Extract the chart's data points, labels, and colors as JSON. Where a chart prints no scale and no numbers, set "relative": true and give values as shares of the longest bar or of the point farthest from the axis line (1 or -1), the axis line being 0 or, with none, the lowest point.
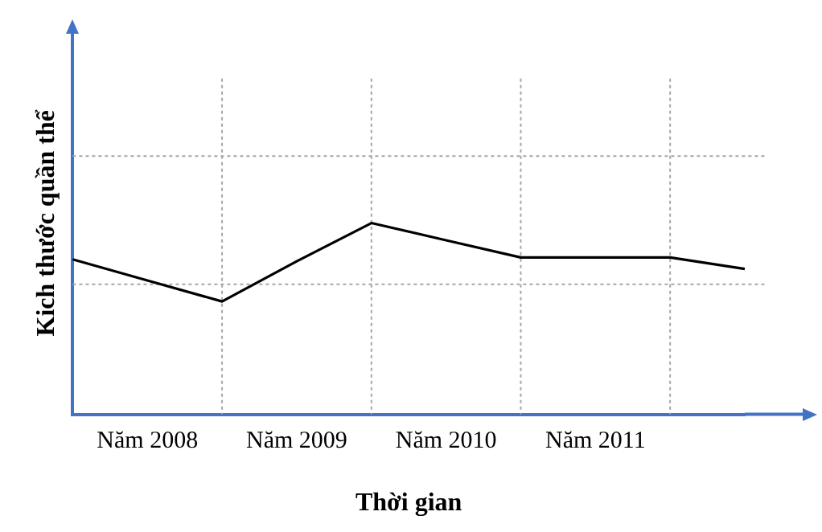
{
  "chart_data": {
    "type": "line",
    "relative": true,
    "xlabel": "Thời gian",
    "ylabel": "Kich thước quần thể",
    "categories": [
      null,
      "Năm 2008",
      null,
      "Năm 2009",
      null,
      "Năm 2010",
      null,
      "Năm 2011",
      null,
      null
    ],
    "series": [
      {
        "color": "#000000",
        "values": [
          0.81,
          0.7,
          0.59,
          0.8,
          1,
          0.91,
          0.82,
          0.82,
          0.82,
          0.76
        ]
      }
    ],
    "ref_lines": [
      {
        "axis": "y",
        "value": 0.68,
        "color": "#a6a6a6",
        "line_style": "dotted"
      },
      {
        "axis": "y",
        "value": 1.35,
        "color": "#a6a6a6",
        "line_style": "dotted"
      }
    ],
    "grid": "x",
    "legend": false,
    "marker": "none",
    "line_style": "solid"
  }
}
